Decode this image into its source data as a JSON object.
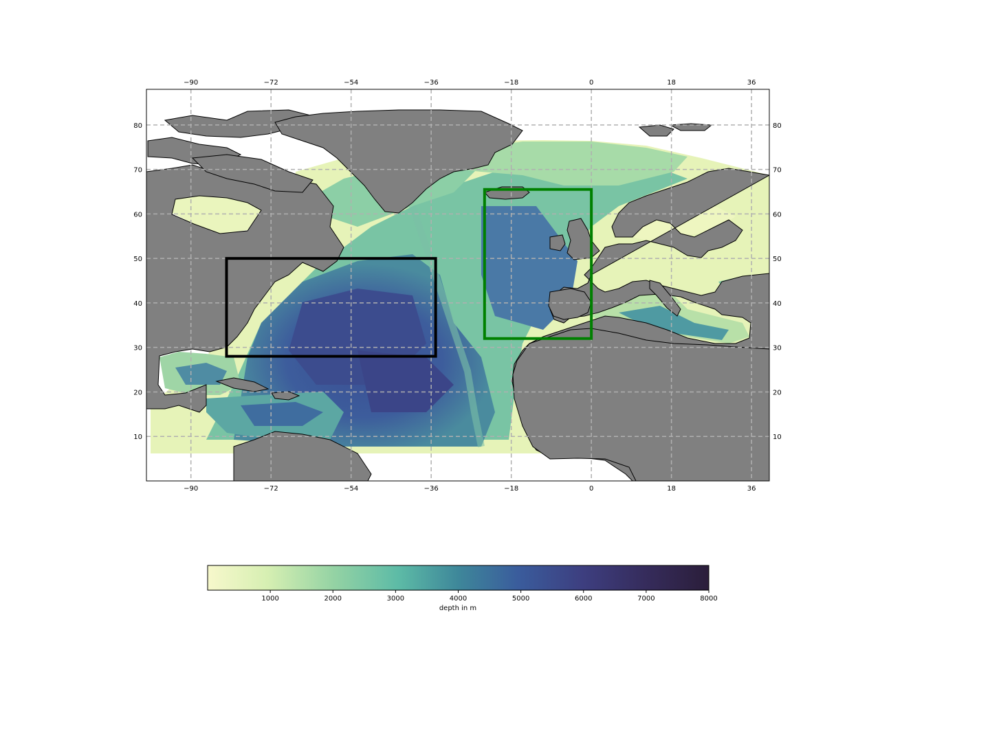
{
  "map": {
    "projection": "PlateCarree",
    "extent": {
      "lon_min": -100,
      "lon_max": 40,
      "lat_min": 0,
      "lat_max": 88
    },
    "gridlines": {
      "lon": [
        -90,
        -72,
        -54,
        -36,
        -18,
        0,
        18,
        36
      ],
      "lat": [
        10,
        20,
        30,
        40,
        50,
        60,
        70,
        80
      ],
      "lon_labels": [
        "−90",
        "−72",
        "−54",
        "−36",
        "−18",
        "0",
        "18",
        "36"
      ],
      "lat_labels": [
        "10",
        "20",
        "30",
        "40",
        "50",
        "60",
        "70",
        "80"
      ],
      "style": "dashed",
      "color": "#b0b0b0"
    },
    "land_color": "#808080",
    "boxes": [
      {
        "name": "black-box",
        "color": "#000000",
        "lon_min": -82,
        "lon_max": -35,
        "lat_min": 28,
        "lat_max": 50
      },
      {
        "name": "green-box",
        "color": "#008000",
        "lon_min": -24,
        "lon_max": 0,
        "lat_min": 32,
        "lat_max": 65.5
      }
    ]
  },
  "colorbar": {
    "label": "depth in m",
    "min": 0,
    "max": 8000,
    "ticks": [
      "1000",
      "2000",
      "3000",
      "4000",
      "5000",
      "6000",
      "7000",
      "8000"
    ],
    "colors": [
      "#f7f8cc",
      "#b8e3a9",
      "#5dbba6",
      "#3e879a",
      "#3a5c9c",
      "#3d3e7f",
      "#2b1e3a"
    ]
  }
}
